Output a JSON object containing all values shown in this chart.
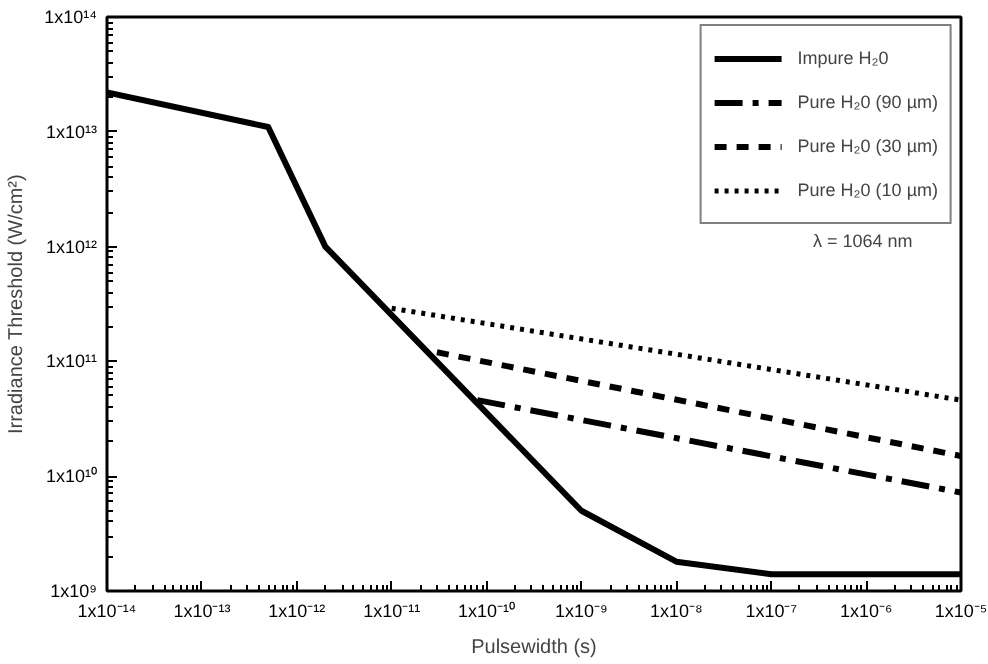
{
  "chart_data": {
    "type": "line",
    "xlabel": "Pulsewidth (s)",
    "ylabel": "Irradiance Threshold (W/cm²)",
    "log": "xy",
    "grid": false,
    "legend": "top right",
    "xlim": [
      1e-14,
      1e-05
    ],
    "ylim": [
      1000000000.0,
      100000000000000.0
    ],
    "xticks": [
      {
        "value": 1e-14,
        "label": "1x10⁻¹⁴"
      },
      {
        "value": 1e-13,
        "label": "1x10⁻¹³"
      },
      {
        "value": 1e-12,
        "label": "1x10⁻¹²"
      },
      {
        "value": 1e-11,
        "label": "1x10⁻¹¹"
      },
      {
        "value": 1e-10,
        "label": "1x10⁻¹⁰"
      },
      {
        "value": 1e-09,
        "label": "1x10⁻⁹"
      },
      {
        "value": 1e-08,
        "label": "1x10⁻⁸"
      },
      {
        "value": 1e-07,
        "label": "1x10⁻⁷"
      },
      {
        "value": 1e-06,
        "label": "1x10⁻⁶"
      },
      {
        "value": 1e-05,
        "label": "1x10⁻⁵"
      }
    ],
    "yticks": [
      {
        "value": 1000000000.0,
        "label": "1x10⁹"
      },
      {
        "value": 10000000000.0,
        "label": "1x10¹⁰"
      },
      {
        "value": 100000000000.0,
        "label": "1x10¹¹"
      },
      {
        "value": 1000000000000.0,
        "label": "1x10¹²"
      },
      {
        "value": 10000000000000.0,
        "label": "1x10¹³"
      },
      {
        "value": 100000000000000.0,
        "label": "1x10¹⁴"
      }
    ],
    "annotations": [
      "λ  = 1064 nm"
    ],
    "series": [
      {
        "name": "Impure H₂0",
        "color": "#000000",
        "line_style": "solid",
        "x": [
          1e-14,
          5e-13,
          2e-12,
          1e-09,
          1e-08,
          1e-07,
          1e-05
        ],
        "values": [
          22000000000000.0,
          11000000000000.0,
          1000000000000.0,
          5000000000.0,
          1800000000.0,
          1400000000.0,
          1400000000.0
        ]
      },
      {
        "name": "Pure H₂0 (90 µm)",
        "color": "#000000",
        "line_style": "dashdot",
        "x": [
          8e-11,
          1e-05
        ],
        "values": [
          46000000000.0,
          7200000000.0
        ]
      },
      {
        "name": "Pure H₂0 (30 µm)",
        "color": "#000000",
        "line_style": "dashed",
        "x": [
          3e-11,
          1e-05
        ],
        "values": [
          120000000000.0,
          15000000000.0
        ]
      },
      {
        "name": "Pure H₂0 (10 µm)",
        "color": "#000000",
        "line_style": "dotted",
        "x": [
          1e-11,
          1e-05
        ],
        "values": [
          290000000000.0,
          46000000000.0
        ]
      }
    ]
  }
}
